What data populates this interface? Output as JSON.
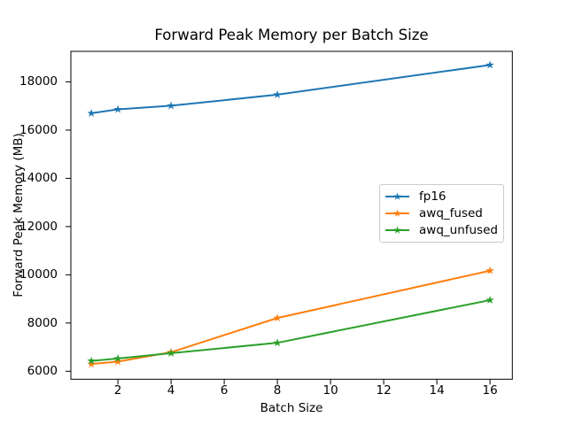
{
  "figure": {
    "background": "#ffffff",
    "text_color": "#000000",
    "axis_color": "#000000"
  },
  "chart_data": {
    "type": "line",
    "title": "Forward Peak Memory per Batch Size",
    "xlabel": "Batch Size",
    "ylabel": "Forward Peak Memory (MB)",
    "x": [
      1,
      2,
      4,
      8,
      16
    ],
    "series": [
      {
        "name": "fp16",
        "color": "#1f77b4",
        "marker": "star",
        "values": [
          16700,
          16860,
          17010,
          17470,
          18700
        ]
      },
      {
        "name": "awq_fused",
        "color": "#ff7f0e",
        "marker": "star",
        "values": [
          6300,
          6400,
          6790,
          8210,
          10170
        ]
      },
      {
        "name": "awq_unfused",
        "color": "#2ca02c",
        "marker": "star",
        "values": [
          6430,
          6530,
          6750,
          7180,
          8950
        ]
      }
    ],
    "xticks": [
      2,
      4,
      6,
      8,
      10,
      12,
      14,
      16
    ],
    "yticks": [
      6000,
      8000,
      10000,
      12000,
      14000,
      16000,
      18000
    ],
    "xlim": [
      0.23,
      16.84
    ],
    "ylim": [
      5670,
      19265
    ],
    "grid": false,
    "legend": {
      "position": "center right"
    }
  }
}
